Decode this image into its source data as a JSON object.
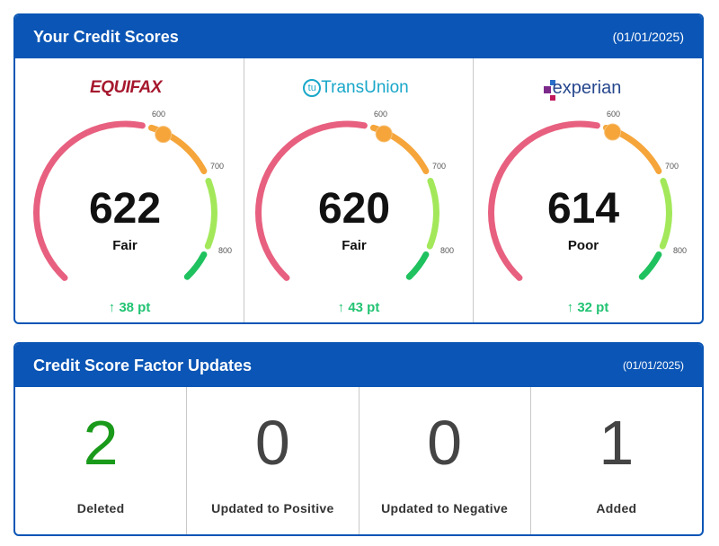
{
  "scores_panel": {
    "title": "Your Credit Scores",
    "date": "(01/01/2025)"
  },
  "bureaus": [
    {
      "name": "EQUIFAX",
      "score": 622,
      "rating": "Fair",
      "delta": "38 pt"
    },
    {
      "name": "TransUnion",
      "score": 620,
      "rating": "Fair",
      "delta": "43 pt"
    },
    {
      "name": "experian",
      "score": 614,
      "rating": "Poor",
      "delta": "32 pt"
    }
  ],
  "gauge_ticks": [
    "600",
    "700",
    "800"
  ],
  "factors_panel": {
    "title": "Credit Score Factor Updates",
    "date": "(01/01/2025)"
  },
  "factors": [
    {
      "value": "2",
      "label": "Deleted",
      "color": "#1a9a1a"
    },
    {
      "value": "0",
      "label": "Updated to Positive",
      "color": "#444444"
    },
    {
      "value": "0",
      "label": "Updated to Negative",
      "color": "#444444"
    },
    {
      "value": "1",
      "label": "Added",
      "color": "#444444"
    }
  ],
  "colors": {
    "brand": "#0a55b5",
    "poor": "#e8607f",
    "fair": "#f5a53a",
    "good": "#a3e85a",
    "excellent": "#1fc25f",
    "delta": "#22c373"
  }
}
